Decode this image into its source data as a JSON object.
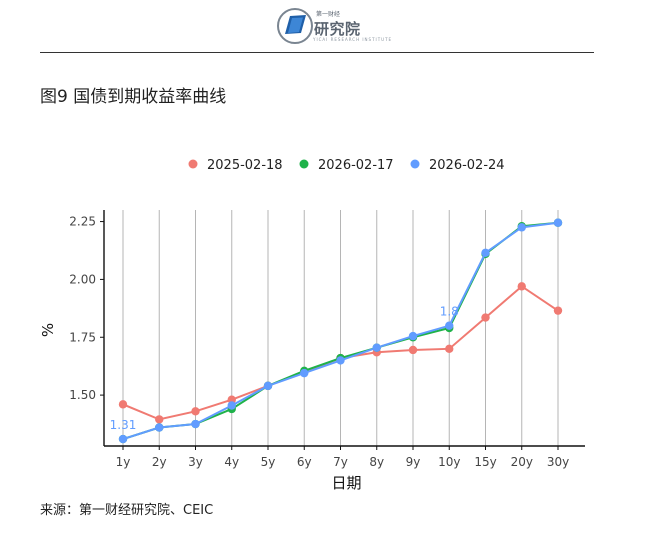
{
  "header": {
    "logo_name": "第一财经研究院",
    "logo_top": "第一财经",
    "logo_main": "研究院",
    "logo_sub": "YICAI RESEARCH INSTITUTE"
  },
  "figure": {
    "title": "图9 国债到期收益率曲线",
    "source": "来源：第一财经研究院、CEIC"
  },
  "chart_data": {
    "type": "line",
    "title": "",
    "xlabel": "日期",
    "ylabel": "%",
    "categories": [
      "1y",
      "2y",
      "3y",
      "4y",
      "5y",
      "6y",
      "7y",
      "8y",
      "9y",
      "10y",
      "15y",
      "20y",
      "30y"
    ],
    "ylim": [
      1.28,
      2.3
    ],
    "yticks": [
      1.5,
      1.75,
      2.0,
      2.25
    ],
    "ytick_labels": [
      "1.50",
      "1.75",
      "2.00",
      "2.25"
    ],
    "grid": "vertical",
    "legend_position": "top",
    "series": [
      {
        "name": "2025-02-18",
        "color": "#F07A72",
        "values": [
          1.46,
          1.395,
          1.43,
          1.48,
          1.54,
          1.6,
          1.66,
          1.685,
          1.695,
          1.7,
          1.835,
          1.97,
          1.865
        ]
      },
      {
        "name": "2026-02-17",
        "color": "#1FB24A",
        "values": [
          1.31,
          1.36,
          1.375,
          1.44,
          1.54,
          1.605,
          1.66,
          1.705,
          1.75,
          1.79,
          2.11,
          2.23,
          2.245
        ]
      },
      {
        "name": "2026-02-24",
        "color": "#619CFF",
        "values": [
          1.31,
          1.36,
          1.375,
          1.455,
          1.54,
          1.595,
          1.65,
          1.705,
          1.755,
          1.8,
          2.115,
          2.225,
          2.245
        ]
      }
    ],
    "annotations": [
      {
        "series": 2,
        "index": 0,
        "text": "1.31"
      },
      {
        "series": 2,
        "index": 9,
        "text": "1.8"
      }
    ]
  }
}
